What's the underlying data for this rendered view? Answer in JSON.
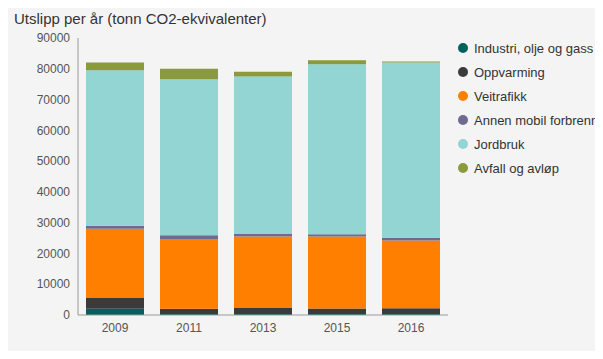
{
  "chart_data": {
    "type": "bar",
    "title": "Utslipp per år (tonn CO2-ekvivalenter)",
    "categories": [
      "2009",
      "2011",
      "2013",
      "2015",
      "2016"
    ],
    "series": [
      {
        "name": "Industri, olje og gass",
        "color": "#00615f",
        "values": [
          2000,
          300,
          300,
          300,
          300
        ]
      },
      {
        "name": "Oppvarming",
        "color": "#3b3b3b",
        "values": [
          3500,
          1700,
          2000,
          1800,
          1900
        ]
      },
      {
        "name": "Veitrafikk",
        "color": "#ff8000",
        "values": [
          22500,
          22700,
          23200,
          23400,
          22000
        ]
      },
      {
        "name": "Annen mobil forbrenni...",
        "color": "#6f6a8e",
        "values": [
          1000,
          1200,
          800,
          700,
          800
        ]
      },
      {
        "name": "Jordbruk",
        "color": "#92d5d2",
        "values": [
          50500,
          50700,
          51200,
          55300,
          57000
        ]
      },
      {
        "name": "Avfall og avløp",
        "color": "#8b9a3e",
        "values": [
          2500,
          3400,
          1500,
          1300,
          400
        ]
      }
    ],
    "ylim": [
      0,
      90000
    ],
    "yticks": [
      0,
      10000,
      20000,
      30000,
      40000,
      50000,
      60000,
      70000,
      80000,
      90000
    ],
    "stacked": true,
    "grid": false,
    "legend": "right"
  }
}
